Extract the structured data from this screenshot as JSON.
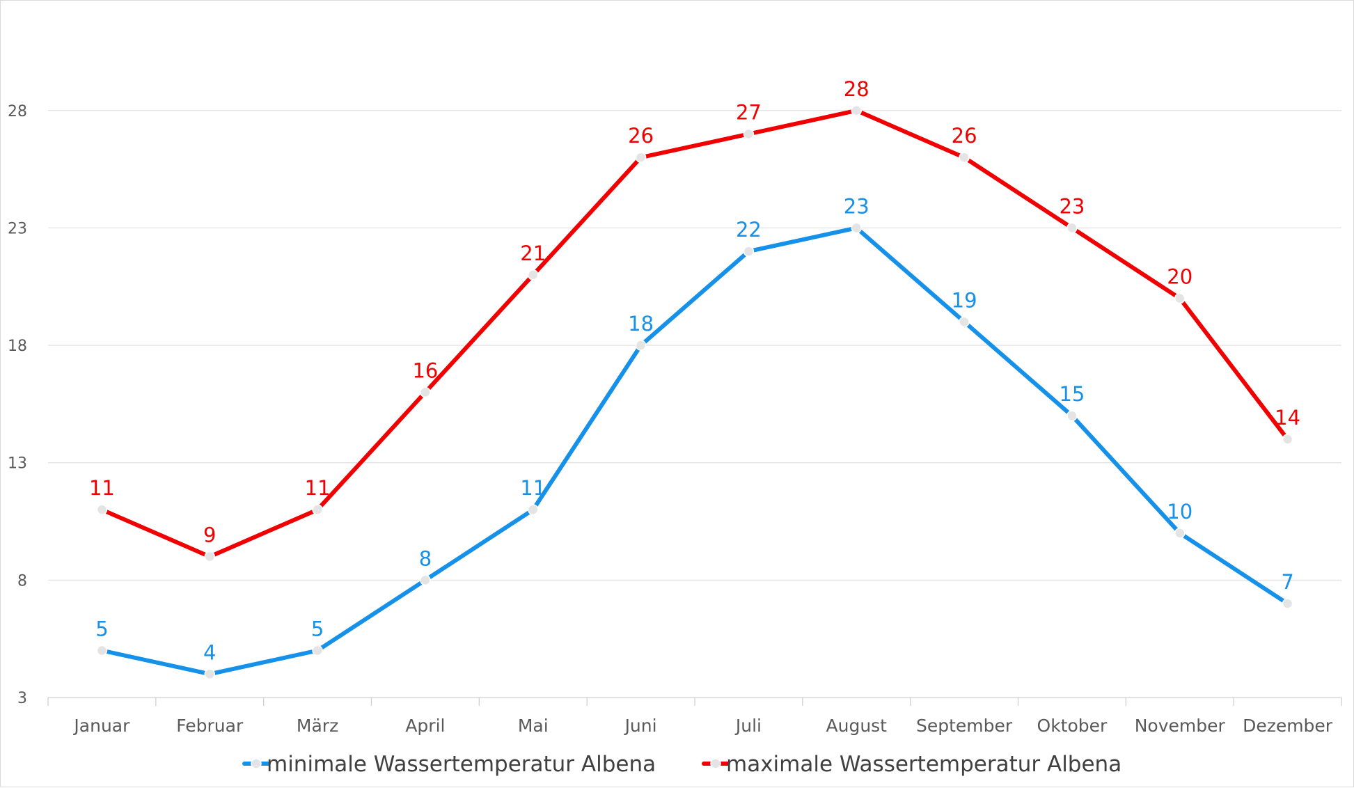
{
  "chart_data": {
    "type": "line",
    "categories": [
      "Januar",
      "Februar",
      "März",
      "April",
      "Mai",
      "Juni",
      "Juli",
      "August",
      "September",
      "Oktober",
      "November",
      "Dezember"
    ],
    "series": [
      {
        "name": "minimale Wassertemperatur Albena",
        "color": "#1591ea",
        "values": [
          5,
          4,
          5,
          8,
          11,
          18,
          22,
          23,
          19,
          15,
          10,
          7
        ]
      },
      {
        "name": "maximale Wassertemperatur Albena",
        "color": "#f00000",
        "values": [
          11,
          9,
          11,
          16,
          21,
          26,
          27,
          28,
          26,
          23,
          20,
          14
        ]
      }
    ],
    "yticks": [
      3,
      8,
      13,
      18,
      23,
      28
    ],
    "ylim": [
      3,
      32
    ],
    "grid": true,
    "data_labels": true,
    "legend_position": "bottom",
    "marker_color": "#e4e4e4"
  }
}
